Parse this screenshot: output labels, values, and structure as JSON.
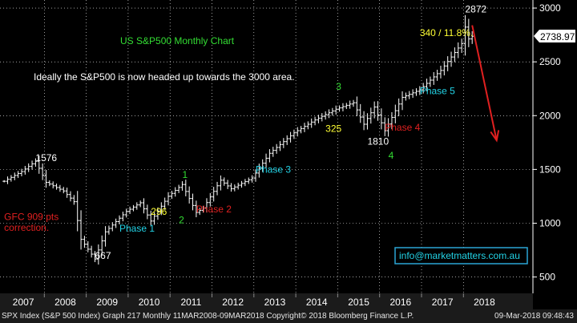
{
  "chart_data": {
    "type": "ohlc",
    "title": "US S&P500 Monthly Chart",
    "commentary": "Ideally the S&P500 is now headed up towards the 3000 area.",
    "ylim": [
      430,
      3060
    ],
    "yticks": [
      500,
      1000,
      1500,
      2000,
      2500,
      3000
    ],
    "years": [
      "2007",
      "2008",
      "2009",
      "2010",
      "2011",
      "2012",
      "2013",
      "2014",
      "2015",
      "2016",
      "2017",
      "2018"
    ],
    "last_price": "2738.97",
    "anchors": [
      [
        "2007-01",
        1390
      ],
      [
        "2007-06",
        1480
      ],
      [
        "2007-10",
        1576
      ],
      [
        "2008-01",
        1380
      ],
      [
        "2008-06",
        1300
      ],
      [
        "2008-09",
        1200
      ],
      [
        "2008-11",
        850
      ],
      [
        "2009-03",
        667
      ],
      [
        "2009-06",
        920
      ],
      [
        "2009-12",
        1110
      ],
      [
        "2010-04",
        1190
      ],
      [
        "2010-07",
        1020
      ],
      [
        "2010-12",
        1250
      ],
      [
        "2011-04",
        1360
      ],
      [
        "2011-08",
        1100
      ],
      [
        "2011-10",
        1140
      ],
      [
        "2012-03",
        1400
      ],
      [
        "2012-06",
        1320
      ],
      [
        "2012-12",
        1420
      ],
      [
        "2013-05",
        1650
      ],
      [
        "2013-12",
        1840
      ],
      [
        "2014-06",
        1960
      ],
      [
        "2014-12",
        2060
      ],
      [
        "2015-05",
        2120
      ],
      [
        "2015-08",
        1920
      ],
      [
        "2015-11",
        2080
      ],
      [
        "2016-02",
        1860
      ],
      [
        "2016-07",
        2170
      ],
      [
        "2016-12",
        2240
      ],
      [
        "2017-06",
        2420
      ],
      [
        "2017-12",
        2670
      ],
      [
        "2018-01",
        2823
      ],
      [
        "2018-02",
        2713
      ],
      [
        "2018-03",
        2738
      ]
    ],
    "annotations": [
      {
        "text": "1576",
        "x": "2007-10",
        "y": 1576,
        "color": "#ffffff"
      },
      {
        "text": "667",
        "x": "2009-03",
        "y": 667,
        "color": "#ffffff"
      },
      {
        "text": "GFC 909 pts",
        "x": "2007-01",
        "y": 1030,
        "color": "#e02020"
      },
      {
        "text": "correction.",
        "x": "2007-01",
        "y": 930,
        "color": "#e02020"
      },
      {
        "text": "Phase 1",
        "x": "2009-10",
        "y": 920,
        "color": "#22d3e6"
      },
      {
        "text": "1",
        "x": "2011-04",
        "y": 1420,
        "color": "#33dd33"
      },
      {
        "text": "296",
        "x": "2010-07",
        "y": 1080,
        "color": "#ffff33"
      },
      {
        "text": "2",
        "x": "2011-03",
        "y": 1000,
        "color": "#33dd33"
      },
      {
        "text": "Phase 2",
        "x": "2011-08",
        "y": 1100,
        "color": "#e02020"
      },
      {
        "text": "Phase 3",
        "x": "2013-01",
        "y": 1470,
        "color": "#22d3e6"
      },
      {
        "text": "3",
        "x": "2014-12",
        "y": 2240,
        "color": "#33dd33"
      },
      {
        "text": "325",
        "x": "2014-09",
        "y": 1850,
        "color": "#ffff33"
      },
      {
        "text": "1810",
        "x": "2015-09",
        "y": 1730,
        "color": "#ffffff"
      },
      {
        "text": "Phase 4",
        "x": "2016-02",
        "y": 1860,
        "color": "#e02020"
      },
      {
        "text": "4",
        "x": "2016-03",
        "y": 1600,
        "color": "#33dd33"
      },
      {
        "text": "Phase 5",
        "x": "2016-12",
        "y": 2200,
        "color": "#22d3e6"
      },
      {
        "text": "340 / 11.8%.",
        "x": "2016-12",
        "y": 2740,
        "color": "#ffff33"
      },
      {
        "text": "2872",
        "x": "2018-01",
        "y": 2960,
        "color": "#ffffff"
      }
    ],
    "arrow": {
      "from": [
        "2018-03",
        2840
      ],
      "to": [
        "2018-10",
        1770
      ],
      "color": "#e02020"
    },
    "watermark": "info@marketmatters.com.au"
  },
  "footer": {
    "left": "SPX Index (S&P 500 Index) Graph 217  Monthly 11MAR2008-09MAR2018  Copyright© 2018 Bloomberg Finance L.P.",
    "right": "09-Mar-2018 09:48:43"
  },
  "colors": {
    "background": "#000000",
    "bars": "#ffffff",
    "grid": "#ffffff",
    "axis_strip": "#1b1b1b",
    "watermark_border": "#2aa6d6",
    "watermark_text": "#22d3e6",
    "title": "#33dd33"
  }
}
